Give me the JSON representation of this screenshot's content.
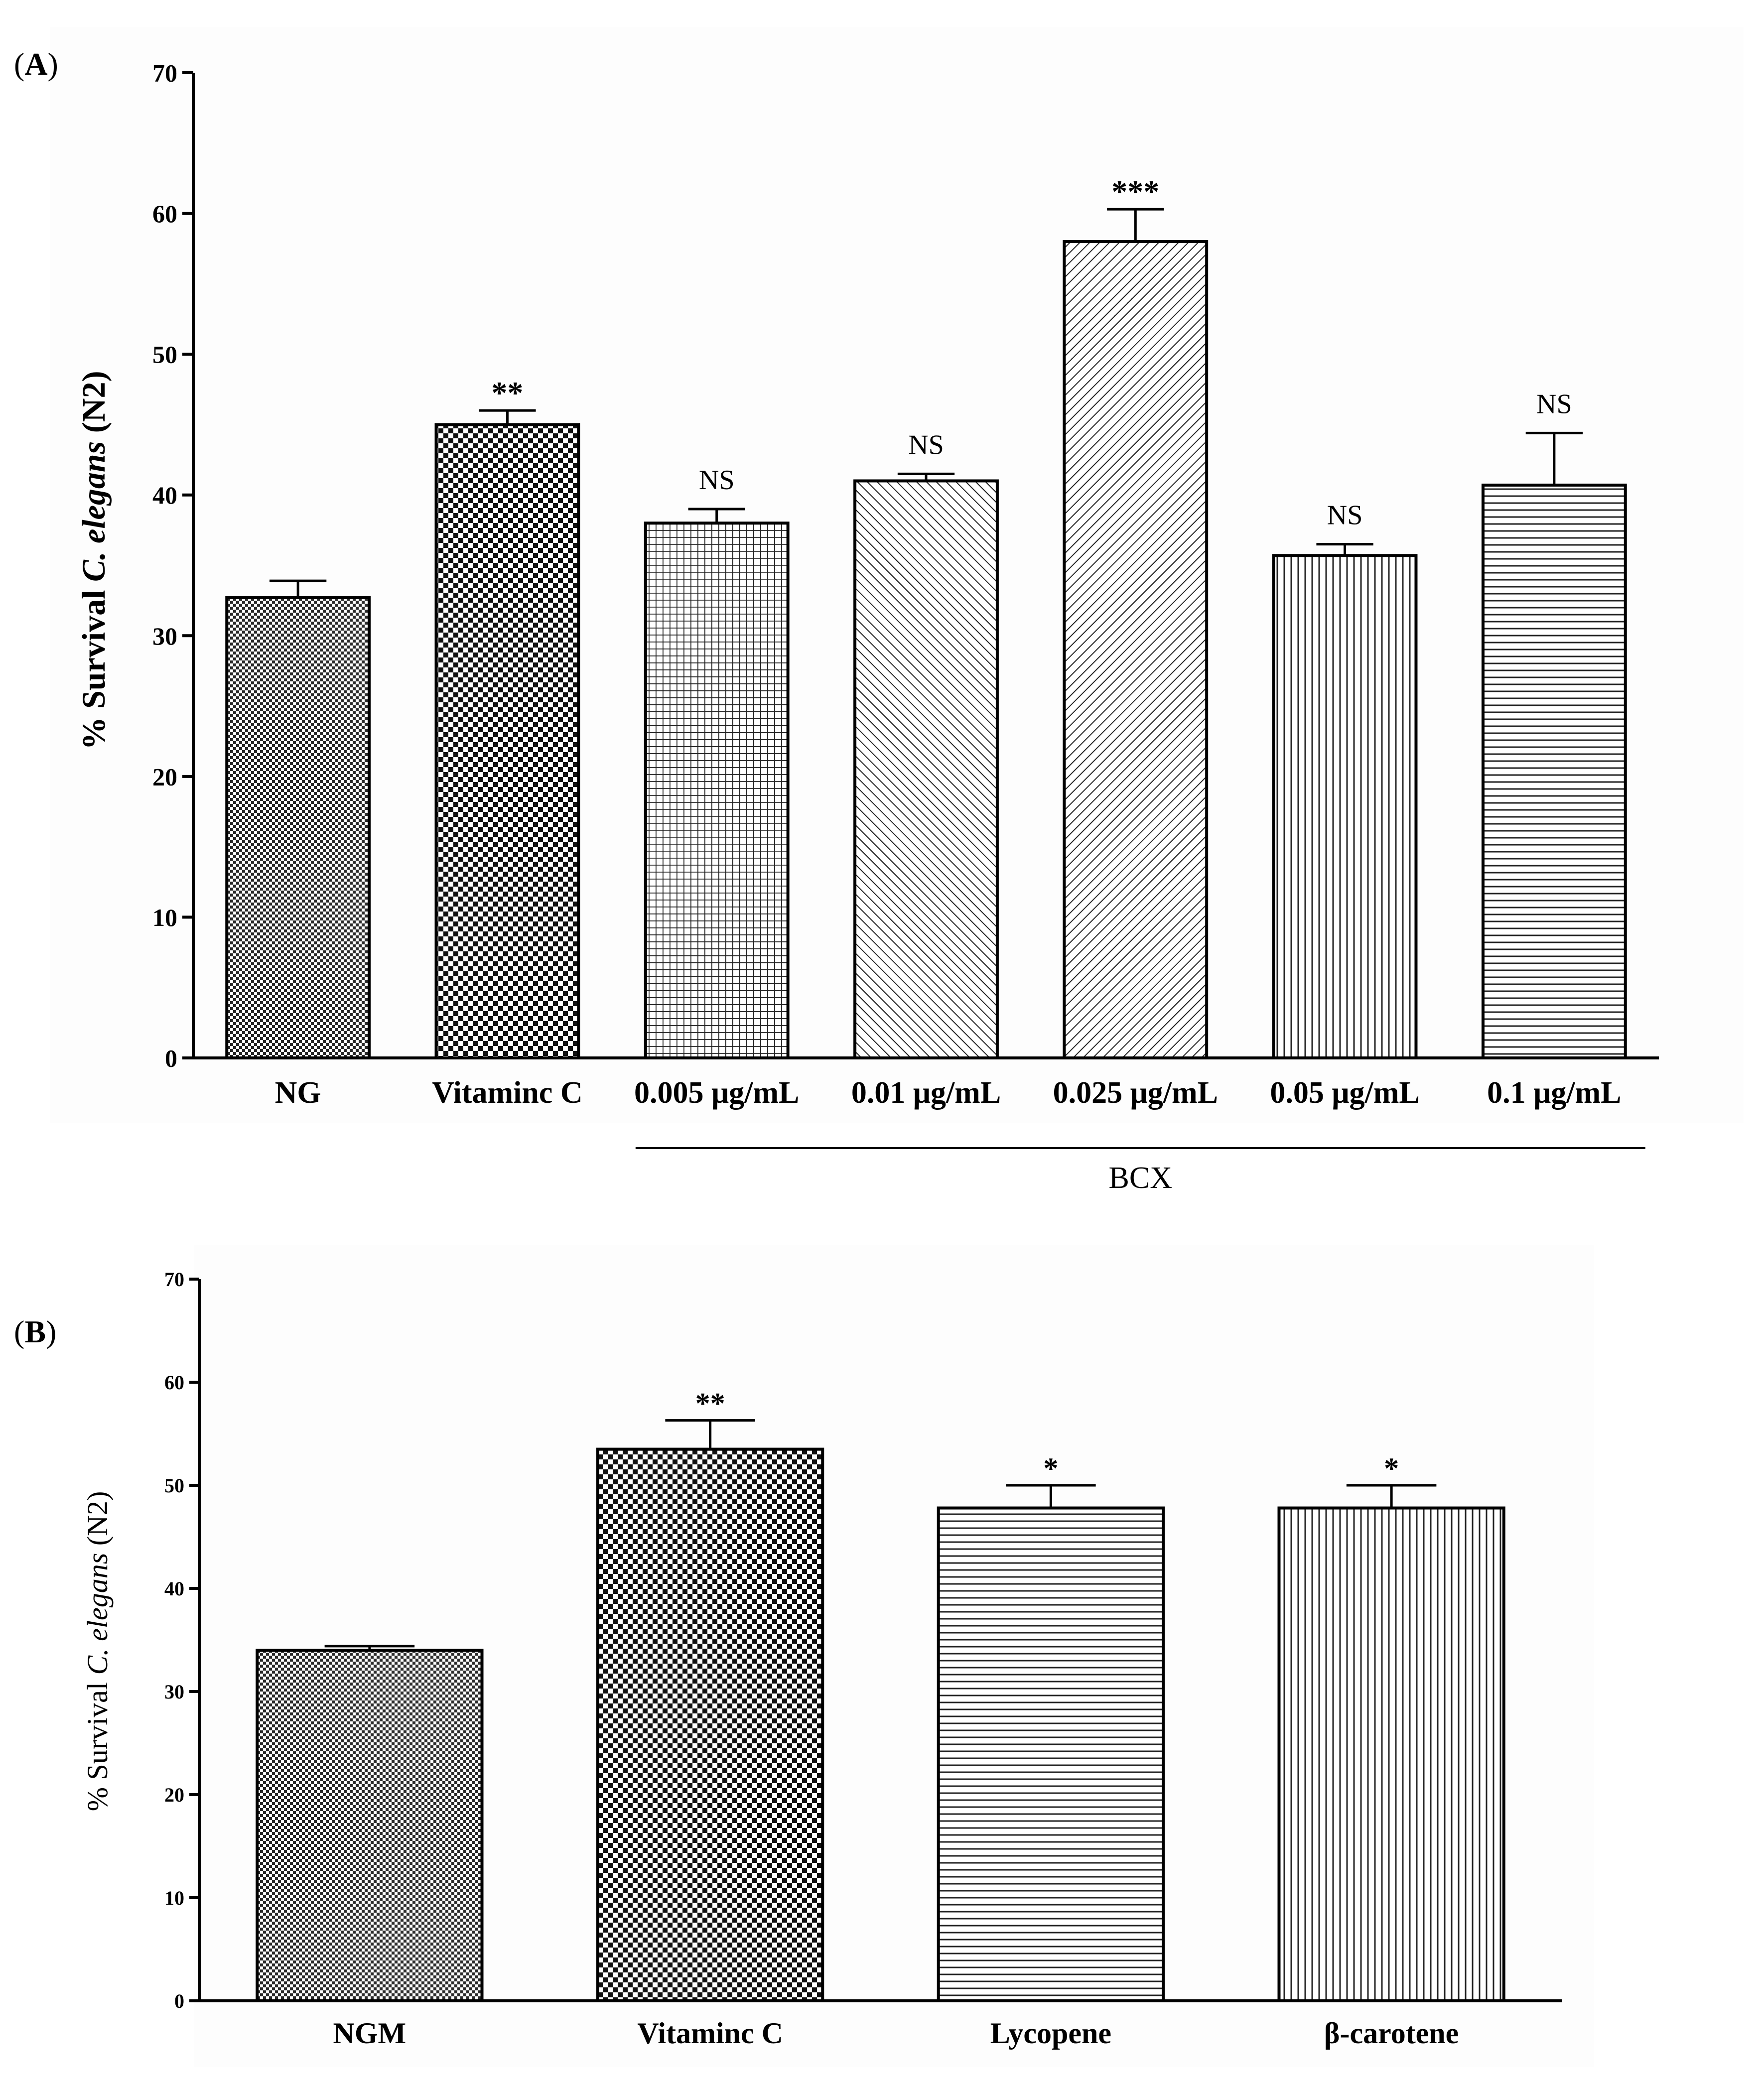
{
  "chart_data": [
    {
      "panel": "A",
      "panel_label_open": "(",
      "panel_label_letter": "A",
      "panel_label_close": ")",
      "type": "bar",
      "title": "",
      "xlabel": "",
      "ylabel_prefix": "% Survival ",
      "ylabel_species": "C. elegans",
      "ylabel_suffix": " (N2)",
      "ylim": [
        0,
        70
      ],
      "yticks": [
        0,
        10,
        20,
        30,
        40,
        50,
        60,
        70
      ],
      "categories": [
        "NG",
        "Vitaminc C",
        "0.005 μg/mL",
        "0.01 μg/mL",
        "0.025 μg/mL",
        "0.05 μg/mL",
        "0.1 μg/mL"
      ],
      "values": [
        32.7,
        45.0,
        38.0,
        41.0,
        58.0,
        35.7,
        40.7
      ],
      "errors": [
        1.2,
        1.0,
        1.0,
        0.5,
        2.3,
        0.8,
        3.7
      ],
      "significance": [
        "",
        "**",
        "NS",
        "NS",
        "***",
        "NS",
        "NS"
      ],
      "patterns": [
        "fine-check",
        "coarse-check",
        "grid",
        "diag-back",
        "diag-fwd",
        "vertical",
        "horizontal"
      ],
      "group_label": "BCX",
      "group_from": 2,
      "group_to": 6
    },
    {
      "panel": "B",
      "panel_label_open": "(",
      "panel_label_letter": "B",
      "panel_label_close": ")",
      "type": "bar",
      "title": "",
      "xlabel": "",
      "ylabel_prefix": "% Survival ",
      "ylabel_species": "C. elegans",
      "ylabel_suffix": " (N2)",
      "ylim": [
        0,
        70
      ],
      "yticks": [
        0,
        10,
        20,
        30,
        40,
        50,
        60,
        70
      ],
      "categories": [
        "NGM",
        "Vitaminc C",
        "Lycopene",
        "β-carotene"
      ],
      "values": [
        34.0,
        53.5,
        47.8,
        47.8
      ],
      "errors": [
        0.4,
        2.8,
        2.2,
        2.2
      ],
      "significance": [
        "",
        "**",
        "*",
        "*"
      ],
      "patterns": [
        "fine-check",
        "coarse-check",
        "horizontal",
        "vertical"
      ]
    }
  ]
}
